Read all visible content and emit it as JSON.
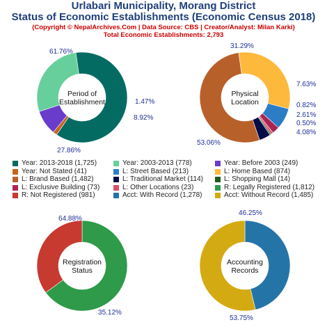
{
  "header": {
    "title_line1": "Urlabari Municipality, Morang District",
    "title_line2": "Status of Economic Establishments (Economic Census 2018)",
    "copyright": "(Copyright © NepalArchives.Com | Data Source: CBS | Creator/Analyst: Milan Karki)",
    "total": "Total Economic Establishments: 2,793"
  },
  "chart_data": [
    {
      "type": "pie",
      "center_label": [
        "Period of",
        "Establishment"
      ],
      "slices": [
        {
          "label": "Year: 2013-2018",
          "value": 1725,
          "pct_label": "61.76%",
          "color": "#046b63"
        },
        {
          "label": "Year: Not Stated",
          "value": 41,
          "pct_label": "1.47%",
          "color": "#c6651c"
        },
        {
          "label": "Year: Before 2003",
          "value": 249,
          "pct_label": "8.92%",
          "color": "#6a3ccc"
        },
        {
          "label": "Year: 2003-2013",
          "value": 778,
          "pct_label": "27.86%",
          "color": "#67cf9b"
        }
      ]
    },
    {
      "type": "pie",
      "center_label": [
        "Physical",
        "Location"
      ],
      "slices": [
        {
          "label": "L: Home Based",
          "value": 874,
          "pct_label": "31.29%",
          "color": "#fdb93c"
        },
        {
          "label": "L: Street Based",
          "value": 213,
          "pct_label": "7.63%",
          "color": "#2c7dc6"
        },
        {
          "label": "L: Exclusive Building",
          "value": 73,
          "pct_label": "2.61%",
          "color": "#ad2453"
        },
        {
          "label": "L: Other Locations",
          "value": 23,
          "pct_label": "0.82%",
          "color": "#d95069"
        },
        {
          "label": "L: Shopping Mall",
          "value": 14,
          "pct_label": "0.50%",
          "color": "#1f5a1f"
        },
        {
          "label": "L: Traditional Market",
          "value": 114,
          "pct_label": "4.08%",
          "color": "#030c47"
        },
        {
          "label": "L: Brand Based",
          "value": 1482,
          "pct_label": "53.06%",
          "color": "#b8602a"
        }
      ]
    },
    {
      "type": "pie",
      "center_label": [
        "Registration",
        "Status"
      ],
      "slices": [
        {
          "label": "R: Legally Registered",
          "value": 1812,
          "pct_label": "64.88%",
          "color": "#2e9a4a"
        },
        {
          "label": "R: Not Registered",
          "value": 981,
          "pct_label": "35.12%",
          "color": "#c63a30"
        }
      ]
    },
    {
      "type": "pie",
      "center_label": [
        "Accounting",
        "Records"
      ],
      "slices": [
        {
          "label": "Acct: With Record",
          "value": 1278,
          "pct_label": "46.25%",
          "color": "#2574a8"
        },
        {
          "label": "Acct: Without Record",
          "value": 1485,
          "pct_label": "53.75%",
          "color": "#d4aa12"
        }
      ]
    }
  ],
  "legend": [
    {
      "text": "Year: 2013-2018 (1,725)",
      "color": "#046b63"
    },
    {
      "text": "Year: 2003-2013 (778)",
      "color": "#67cf9b"
    },
    {
      "text": "Year: Before 2003 (249)",
      "color": "#6a3ccc"
    },
    {
      "text": "Year: Not Stated (41)",
      "color": "#c6651c"
    },
    {
      "text": "L: Street Based (213)",
      "color": "#2c7dc6"
    },
    {
      "text": "L: Home Based (874)",
      "color": "#fdb93c"
    },
    {
      "text": "L: Brand Based (1,482)",
      "color": "#b8602a"
    },
    {
      "text": "L: Traditional Market (114)",
      "color": "#030c47"
    },
    {
      "text": "L: Shopping Mall (14)",
      "color": "#1f5a1f"
    },
    {
      "text": "L: Exclusive Building (73)",
      "color": "#ad2453"
    },
    {
      "text": "L: Other Locations (23)",
      "color": "#d95069"
    },
    {
      "text": "R: Legally Registered (1,812)",
      "color": "#2e9a4a"
    },
    {
      "text": "R: Not Registered (981)",
      "color": "#c63a30"
    },
    {
      "text": "Acct: With Record (1,278)",
      "color": "#2574a8"
    },
    {
      "text": "Acct: Without Record (1,485)",
      "color": "#d4aa12"
    }
  ]
}
